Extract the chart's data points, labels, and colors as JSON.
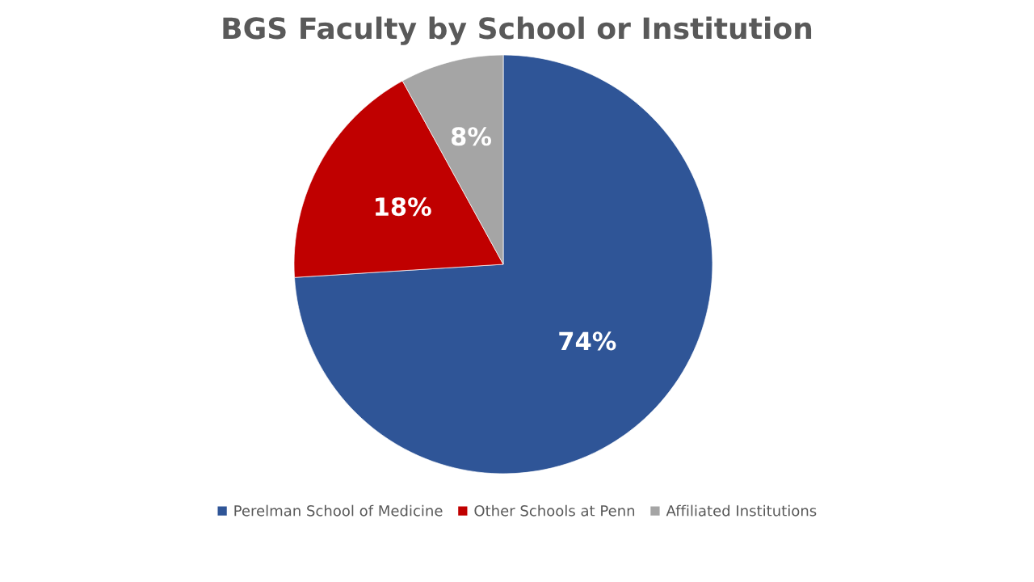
{
  "chart_data": {
    "type": "pie",
    "title": "BGS Faculty by School or Institution",
    "categories": [
      "Perelman School of Medicine",
      "Other Schools at Penn",
      "Affiliated Institutions"
    ],
    "values": [
      74,
      18,
      8
    ],
    "colors": [
      "#2f5597",
      "#c00000",
      "#a5a5a5"
    ],
    "value_labels": [
      "74%",
      "18%",
      "8%"
    ],
    "legend": "bottom"
  }
}
